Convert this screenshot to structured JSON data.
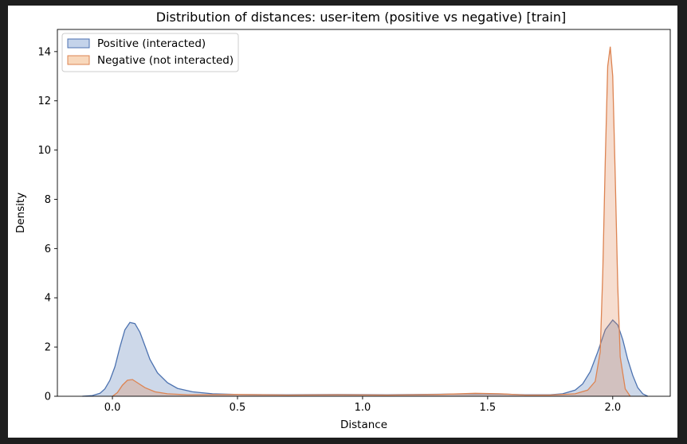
{
  "chart_data": {
    "type": "area",
    "title": "Distribution of distances: user-item (positive vs negative) [train]",
    "xlabel": "Distance",
    "ylabel": "Density",
    "xlim": [
      -0.22,
      2.23
    ],
    "ylim": [
      0,
      14.9
    ],
    "xticks": [
      0.0,
      0.5,
      1.0,
      1.5,
      2.0
    ],
    "xtick_labels": [
      "0.0",
      "0.5",
      "1.0",
      "1.5",
      "2.0"
    ],
    "yticks": [
      0,
      2,
      4,
      6,
      8,
      10,
      12,
      14
    ],
    "ytick_labels": [
      "0",
      "2",
      "4",
      "6",
      "8",
      "10",
      "12",
      "14"
    ],
    "grid": false,
    "legend_position": "top-left",
    "series": [
      {
        "name": "Positive (interacted)",
        "color": "#4c72b0",
        "fill": "#c4d3ea",
        "points": [
          [
            -0.12,
            0
          ],
          [
            -0.08,
            0.03
          ],
          [
            -0.05,
            0.12
          ],
          [
            -0.03,
            0.3
          ],
          [
            -0.01,
            0.65
          ],
          [
            0.01,
            1.2
          ],
          [
            0.03,
            2.0
          ],
          [
            0.05,
            2.7
          ],
          [
            0.07,
            3.0
          ],
          [
            0.09,
            2.95
          ],
          [
            0.11,
            2.6
          ],
          [
            0.13,
            2.05
          ],
          [
            0.15,
            1.5
          ],
          [
            0.18,
            0.95
          ],
          [
            0.22,
            0.55
          ],
          [
            0.26,
            0.32
          ],
          [
            0.32,
            0.18
          ],
          [
            0.4,
            0.1
          ],
          [
            0.5,
            0.07
          ],
          [
            0.7,
            0.06
          ],
          [
            0.9,
            0.07
          ],
          [
            1.1,
            0.06
          ],
          [
            1.3,
            0.08
          ],
          [
            1.45,
            0.1
          ],
          [
            1.55,
            0.09
          ],
          [
            1.65,
            0.06
          ],
          [
            1.75,
            0.06
          ],
          [
            1.8,
            0.1
          ],
          [
            1.85,
            0.25
          ],
          [
            1.88,
            0.5
          ],
          [
            1.91,
            1.0
          ],
          [
            1.94,
            1.8
          ],
          [
            1.97,
            2.7
          ],
          [
            2.0,
            3.1
          ],
          [
            2.02,
            2.9
          ],
          [
            2.04,
            2.3
          ],
          [
            2.06,
            1.5
          ],
          [
            2.08,
            0.85
          ],
          [
            2.1,
            0.35
          ],
          [
            2.12,
            0.1
          ],
          [
            2.14,
            0
          ]
        ]
      },
      {
        "name": "Negative (not interacted)",
        "color": "#dd8452",
        "fill": "#f8d8bc",
        "points": [
          [
            0.0,
            0
          ],
          [
            0.02,
            0.15
          ],
          [
            0.04,
            0.45
          ],
          [
            0.06,
            0.65
          ],
          [
            0.08,
            0.68
          ],
          [
            0.1,
            0.55
          ],
          [
            0.13,
            0.35
          ],
          [
            0.17,
            0.18
          ],
          [
            0.22,
            0.1
          ],
          [
            0.3,
            0.06
          ],
          [
            0.5,
            0.07
          ],
          [
            0.7,
            0.05
          ],
          [
            0.9,
            0.06
          ],
          [
            1.1,
            0.05
          ],
          [
            1.3,
            0.07
          ],
          [
            1.45,
            0.12
          ],
          [
            1.55,
            0.1
          ],
          [
            1.65,
            0.05
          ],
          [
            1.75,
            0.05
          ],
          [
            1.85,
            0.1
          ],
          [
            1.9,
            0.25
          ],
          [
            1.93,
            0.6
          ],
          [
            1.95,
            1.8
          ],
          [
            1.96,
            5.0
          ],
          [
            1.97,
            9.5
          ],
          [
            1.98,
            13.4
          ],
          [
            1.99,
            14.2
          ],
          [
            2.0,
            13.0
          ],
          [
            2.01,
            9.0
          ],
          [
            2.02,
            4.5
          ],
          [
            2.03,
            1.6
          ],
          [
            2.05,
            0.3
          ],
          [
            2.07,
            0
          ]
        ]
      }
    ]
  }
}
